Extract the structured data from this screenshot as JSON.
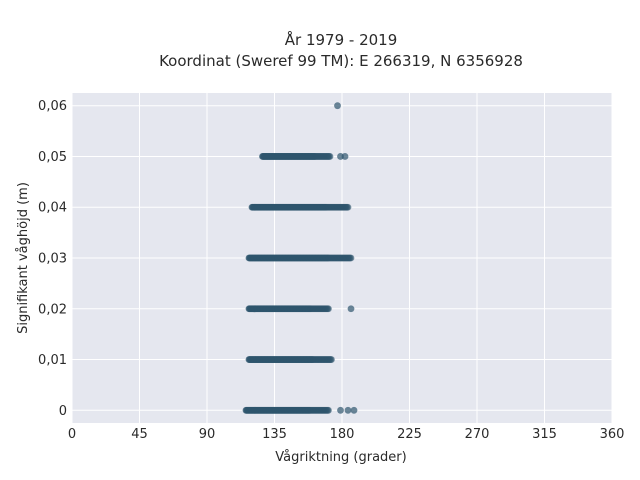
{
  "chart_data": {
    "type": "scatter",
    "title": "År 1979 - 2019",
    "subtitle": "Koordinat (Sweref 99 TM): E 266319, N 6356928",
    "xlabel": "Vågriktning (grader)",
    "ylabel": "Signifikant våghöjd (m)",
    "xlim": [
      0,
      360
    ],
    "ylim": [
      -0.0025,
      0.0625
    ],
    "x_ticks": [
      0,
      45,
      90,
      135,
      180,
      225,
      270,
      315,
      360
    ],
    "x_tick_labels": [
      "0",
      "45",
      "90",
      "135",
      "180",
      "225",
      "270",
      "315",
      "360"
    ],
    "y_ticks": [
      0,
      0.01,
      0.02,
      0.03,
      0.04,
      0.05,
      0.06
    ],
    "y_tick_labels": [
      "0",
      "0,01",
      "0,02",
      "0,03",
      "0,04",
      "0,05",
      "0,06"
    ],
    "grid": true,
    "point_color": "#2f566d",
    "background_color": "#e5e7ef",
    "bands": [
      {
        "y": 0.0,
        "x_min": 116,
        "x_max": 171,
        "outliers": [
          179,
          184,
          188
        ]
      },
      {
        "y": 0.01,
        "x_min": 118,
        "x_max": 173,
        "outliers": []
      },
      {
        "y": 0.02,
        "x_min": 118,
        "x_max": 171,
        "outliers": [
          186
        ]
      },
      {
        "y": 0.03,
        "x_min": 118,
        "x_max": 186,
        "outliers": []
      },
      {
        "y": 0.04,
        "x_min": 120,
        "x_max": 184,
        "outliers": []
      },
      {
        "y": 0.05,
        "x_min": 127,
        "x_max": 172,
        "outliers": [
          179,
          182
        ]
      },
      {
        "y": 0.06,
        "x_min": null,
        "x_max": null,
        "outliers": [
          177
        ]
      }
    ]
  }
}
